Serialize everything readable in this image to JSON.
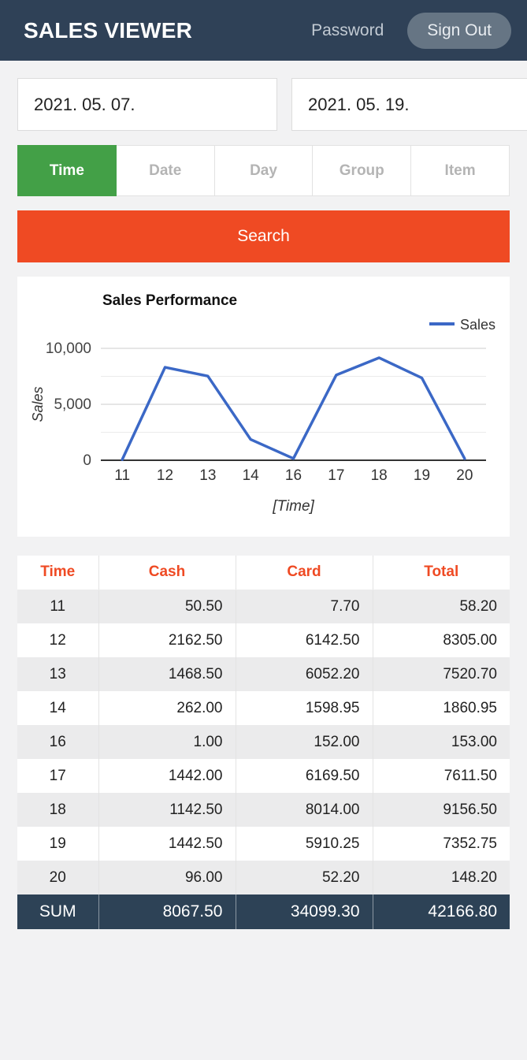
{
  "header": {
    "title": "SALES VIEWER",
    "password_label": "Password",
    "sign_out_label": "Sign Out"
  },
  "filters": {
    "date_from": "2021. 05. 07.",
    "date_to": "2021. 05. 19.",
    "tabs": [
      {
        "label": "Time",
        "active": true
      },
      {
        "label": "Date",
        "active": false
      },
      {
        "label": "Day",
        "active": false
      },
      {
        "label": "Group",
        "active": false
      },
      {
        "label": "Item",
        "active": false
      }
    ],
    "search_label": "Search"
  },
  "chart_data": {
    "type": "line",
    "title": "Sales Performance",
    "xlabel": "[Time]",
    "ylabel": "Sales",
    "legend_position": "top-right",
    "categories": [
      "11",
      "12",
      "13",
      "14",
      "16",
      "17",
      "18",
      "19",
      "20"
    ],
    "series": [
      {
        "name": "Sales",
        "values": [
          58.2,
          8305.0,
          7520.7,
          1860.95,
          153.0,
          7611.5,
          9156.5,
          7352.75,
          148.2
        ]
      }
    ],
    "ylim": [
      0,
      10000
    ],
    "yticks": [
      0,
      5000,
      10000
    ],
    "ytick_labels": [
      "0",
      "5,000",
      "10,000"
    ],
    "minor_gridlines": [
      2500,
      7500
    ],
    "grid": true,
    "line_color": "#3b68c6"
  },
  "table": {
    "columns": [
      "Time",
      "Cash",
      "Card",
      "Total"
    ],
    "rows": [
      [
        "11",
        "50.50",
        "7.70",
        "58.20"
      ],
      [
        "12",
        "2162.50",
        "6142.50",
        "8305.00"
      ],
      [
        "13",
        "1468.50",
        "6052.20",
        "7520.70"
      ],
      [
        "14",
        "262.00",
        "1598.95",
        "1860.95"
      ],
      [
        "16",
        "1.00",
        "152.00",
        "153.00"
      ],
      [
        "17",
        "1442.00",
        "6169.50",
        "7611.50"
      ],
      [
        "18",
        "1142.50",
        "8014.00",
        "9156.50"
      ],
      [
        "19",
        "1442.50",
        "5910.25",
        "7352.75"
      ],
      [
        "20",
        "96.00",
        "52.20",
        "148.20"
      ]
    ],
    "sum_row": [
      "SUM",
      "8067.50",
      "34099.30",
      "42166.80"
    ]
  },
  "colors": {
    "header_bg": "#2f4157",
    "accent_orange": "#ef4a23",
    "active_tab_green": "#43a047",
    "sum_row_bg": "#2d4256",
    "chart_line_blue": "#3b68c6"
  }
}
